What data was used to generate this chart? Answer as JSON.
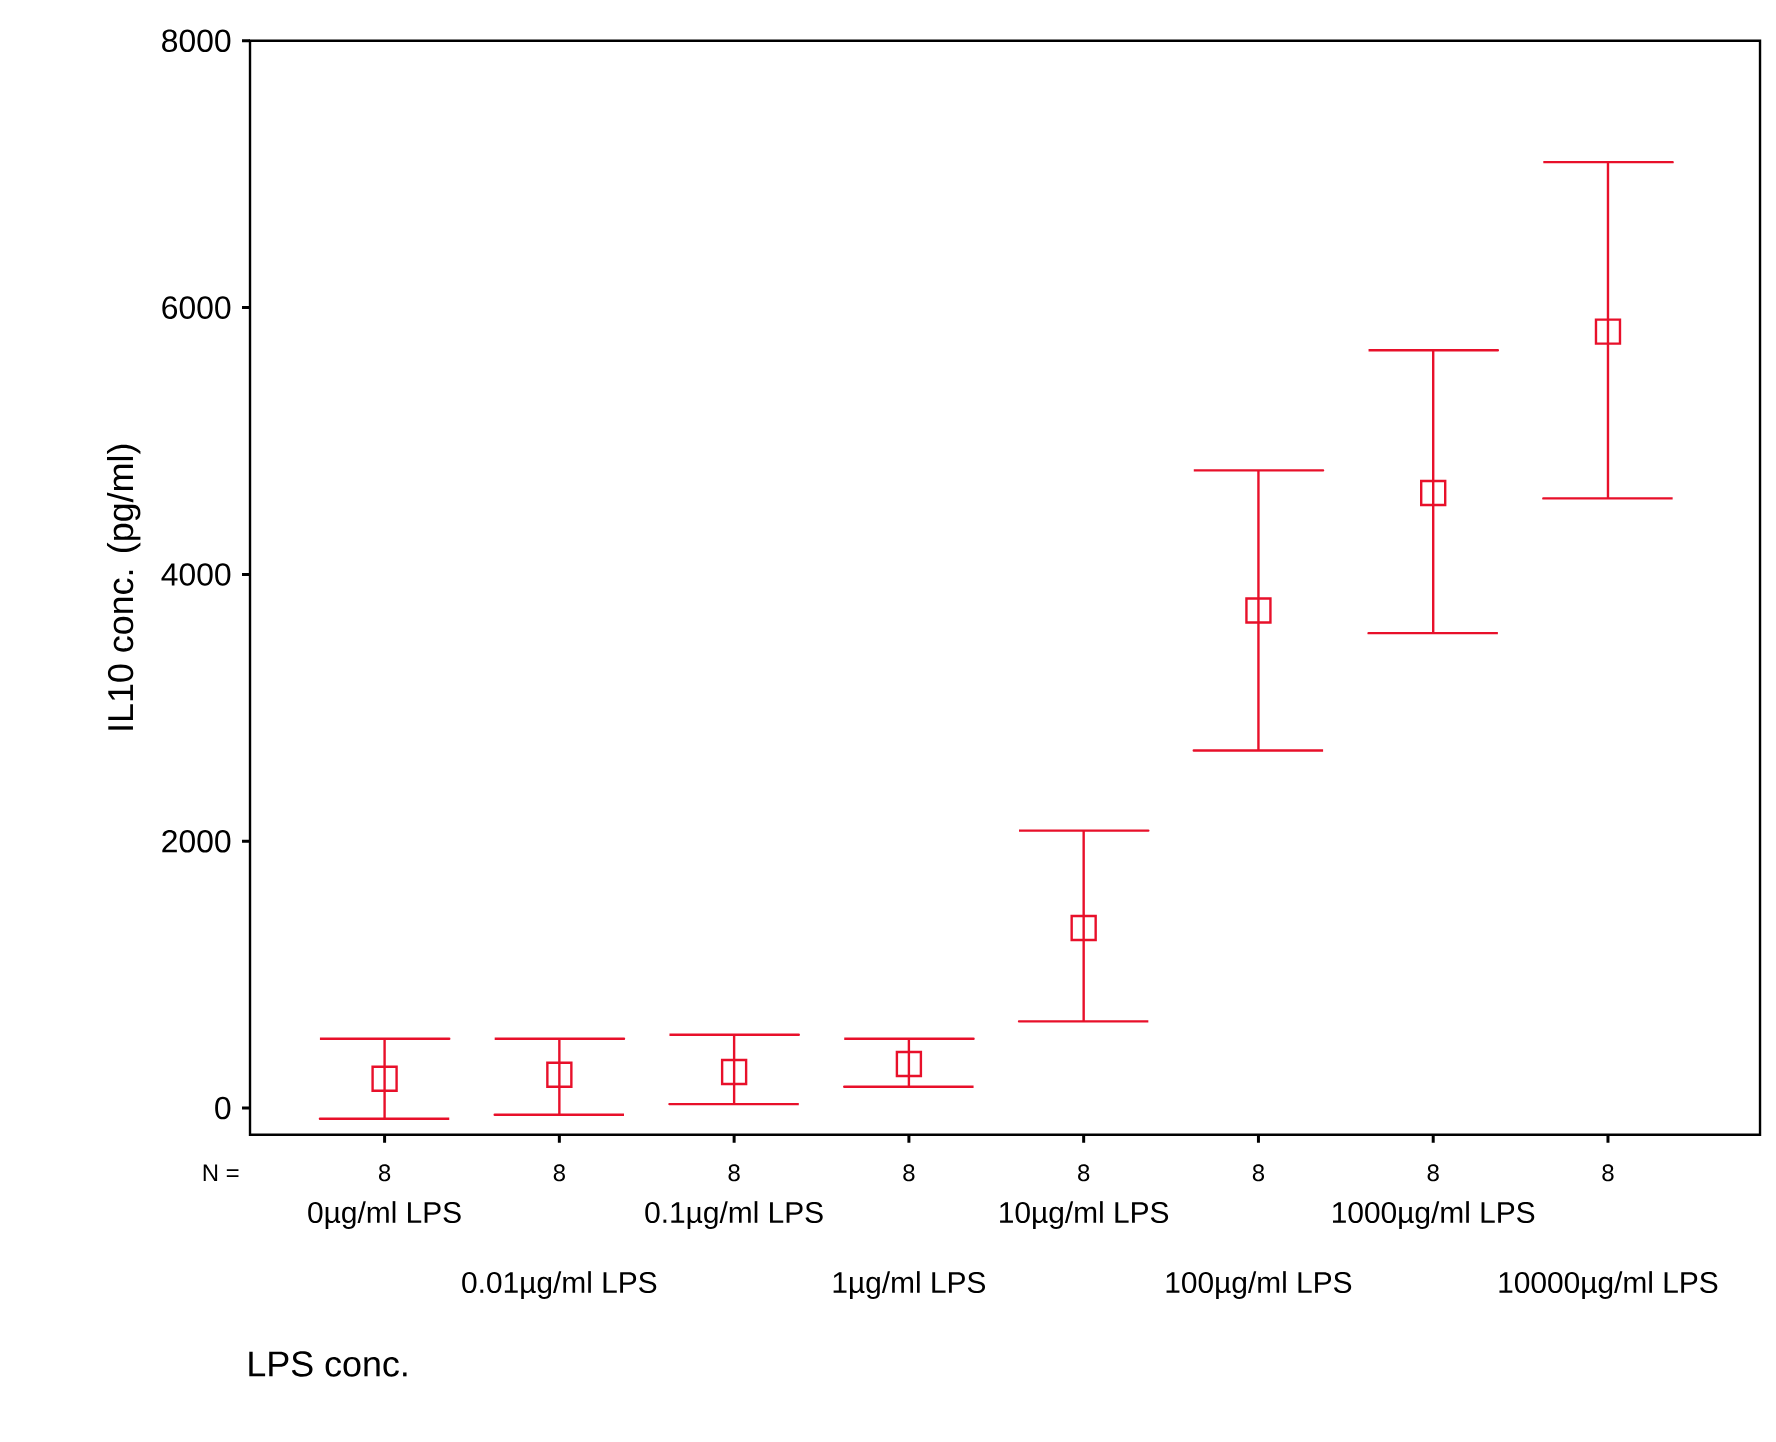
{
  "chart_data": {
    "type": "scatter",
    "categories": [
      "0µg/ml LPS",
      "0.01µg/ml LPS",
      "0.1µg/ml LPS",
      "1µg/ml LPS",
      "10µg/ml LPS",
      "100µg/ml LPS",
      "1000µg/ml LPS",
      "10000µg/ml LPS"
    ],
    "values": [
      220,
      250,
      270,
      330,
      1350,
      3730,
      4610,
      5820
    ],
    "errors": [
      [
        -80,
        520
      ],
      [
        -50,
        520
      ],
      [
        30,
        550
      ],
      [
        160,
        520
      ],
      [
        650,
        2080
      ],
      [
        2680,
        4780
      ],
      [
        3560,
        5680
      ],
      [
        4570,
        7090
      ]
    ],
    "color": "#e8102a",
    "marker": "square",
    "ylim": [
      -200,
      8000
    ],
    "yticks": [
      0,
      2000,
      4000,
      6000,
      8000
    ],
    "xlabel": "LPS conc.",
    "ylabel": "IL10 conc. (pg/ml)",
    "annotations": [
      "N =",
      "8",
      "8",
      "8",
      "8",
      "8",
      "8",
      "8",
      "8"
    ]
  }
}
